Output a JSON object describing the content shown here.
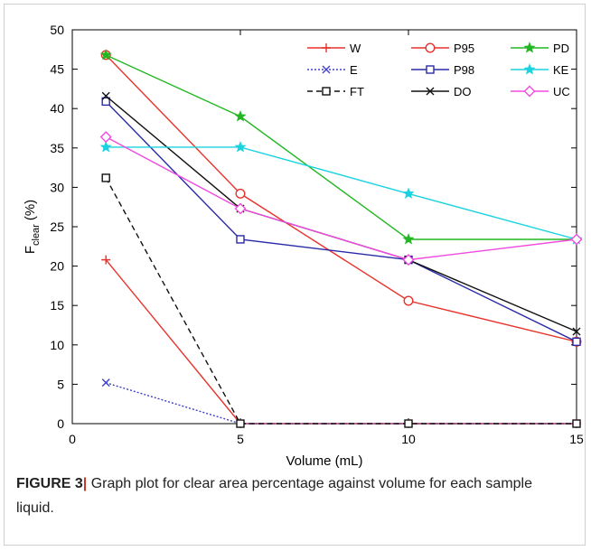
{
  "chart_data": {
    "type": "line",
    "xlabel": "Volume (mL)",
    "ylabel_main": "F",
    "ylabel_sub": "clear",
    "ylabel_unit": "(%)",
    "xlim": [
      0,
      15
    ],
    "ylim": [
      0,
      50
    ],
    "xticks": [
      0,
      5,
      10,
      15
    ],
    "yticks": [
      0,
      5,
      10,
      15,
      20,
      25,
      30,
      35,
      40,
      45,
      50
    ],
    "grid": false,
    "legend_position": "top-right",
    "x": [
      1,
      5,
      10,
      15
    ],
    "series": [
      {
        "name": "W",
        "color": "#e8322b",
        "marker": "plus",
        "dash": "",
        "values": [
          20.8,
          0,
          0,
          0
        ]
      },
      {
        "name": "E",
        "color": "#4040c8",
        "marker": "x",
        "dash": "2,2",
        "values": [
          5.2,
          0,
          0,
          0
        ]
      },
      {
        "name": "FT",
        "color": "#111111",
        "marker": "square",
        "dash": "6,4",
        "values": [
          31.2,
          0,
          0,
          0
        ]
      },
      {
        "name": "P95",
        "color": "#e8322b",
        "marker": "circle",
        "dash": "",
        "values": [
          46.8,
          29.2,
          15.6,
          10.4
        ]
      },
      {
        "name": "P98",
        "color": "#2a2aa8",
        "marker": "square",
        "dash": "",
        "values": [
          40.9,
          23.4,
          20.8,
          10.4
        ]
      },
      {
        "name": "DO",
        "color": "#111111",
        "marker": "x",
        "dash": "",
        "values": [
          41.6,
          27.3,
          20.8,
          11.7
        ]
      },
      {
        "name": "PD",
        "color": "#22b722",
        "marker": "star",
        "dash": "",
        "values": [
          46.8,
          39.0,
          23.4,
          23.4
        ]
      },
      {
        "name": "KE",
        "color": "#1ad3df",
        "marker": "star",
        "dash": "",
        "values": [
          35.1,
          35.1,
          29.2,
          23.4
        ]
      },
      {
        "name": "UC",
        "color": "#f04be0",
        "marker": "diamond",
        "dash": "",
        "values": [
          36.4,
          27.3,
          20.8,
          23.4
        ]
      }
    ]
  },
  "caption": {
    "label": "FIGURE 3",
    "separator": "|",
    "text": " Graph plot for clear area percentage against volume for each sample liquid."
  }
}
